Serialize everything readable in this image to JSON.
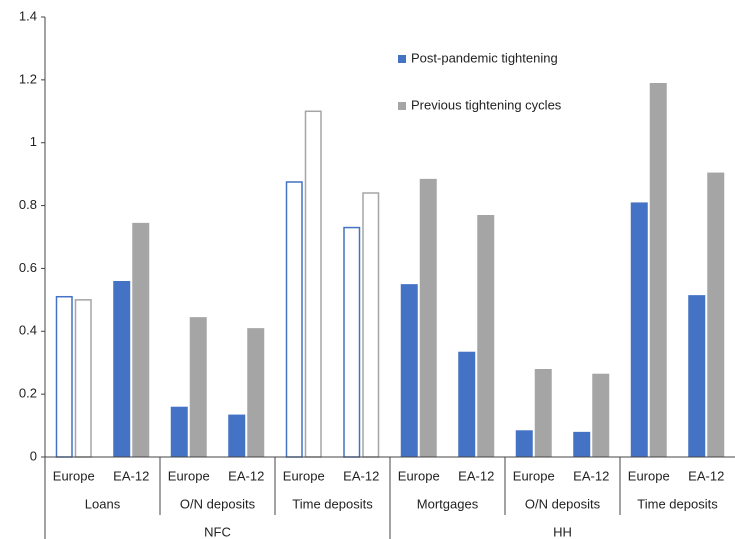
{
  "chart_data": {
    "type": "bar",
    "groups": [
      {
        "name": "NFC",
        "subgroups": [
          {
            "name": "Loans",
            "categories": [
              "Europe",
              "EA-12"
            ]
          },
          {
            "name": "O/N deposits",
            "categories": [
              "Europe",
              "EA-12"
            ]
          },
          {
            "name": "Time deposits",
            "categories": [
              "Europe",
              "EA-12"
            ]
          }
        ]
      },
      {
        "name": "HH",
        "subgroups": [
          {
            "name": "Mortgages",
            "categories": [
              "Europe",
              "EA-12"
            ]
          },
          {
            "name": "O/N deposits",
            "categories": [
              "Europe",
              "EA-12"
            ]
          },
          {
            "name": "Time deposits",
            "categories": [
              "Europe",
              "EA-12"
            ]
          }
        ]
      }
    ],
    "series": [
      {
        "name": "Post-pandemic tightening",
        "color": "#4472c4",
        "values": [
          0.51,
          0.56,
          0.16,
          0.135,
          0.875,
          0.73,
          0.55,
          0.335,
          0.085,
          0.08,
          0.81,
          0.515
        ]
      },
      {
        "name": "Previous tightening cycles",
        "color": "#a5a5a5",
        "values": [
          0.5,
          0.745,
          0.445,
          0.41,
          1.1,
          0.84,
          0.885,
          0.77,
          0.28,
          0.265,
          1.19,
          0.905
        ]
      }
    ],
    "outlined": [
      true,
      false,
      false,
      false,
      true,
      true,
      false,
      false,
      false,
      false,
      false,
      false
    ],
    "ylim": [
      0,
      1.4
    ],
    "yticks": [
      0,
      0.2,
      0.4,
      0.6,
      0.8,
      1,
      1.2,
      1.4
    ]
  }
}
